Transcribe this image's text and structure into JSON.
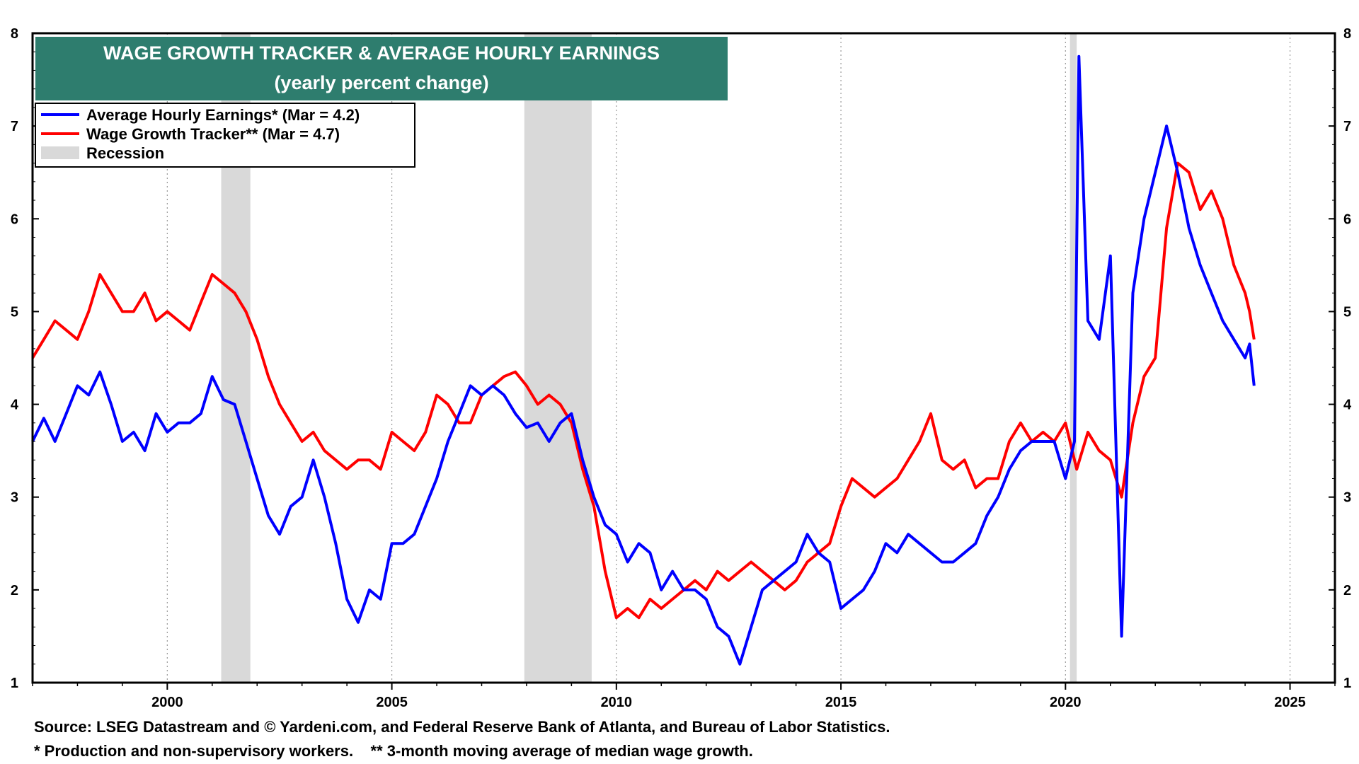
{
  "chart_data": {
    "type": "line",
    "title": "WAGE GROWTH TRACKER & AVERAGE HOURLY EARNINGS",
    "subtitle": "(yearly percent change)",
    "xlabel": "",
    "ylabel": "",
    "xlim": [
      1997.0,
      2026.0
    ],
    "ylim": [
      1,
      8
    ],
    "x_ticks": [
      2000,
      2005,
      2010,
      2015,
      2020,
      2025
    ],
    "y_ticks": [
      1,
      2,
      3,
      4,
      5,
      6,
      7,
      8
    ],
    "grid": "vertical dotted",
    "legend_position": "top-left",
    "colors": {
      "title_bg": "#2e7d6e",
      "ahe": "#0000ff",
      "wgt": "#ff0000",
      "recession": "#d9d9d9"
    },
    "recessions": [
      [
        2001.2,
        2001.85
      ],
      [
        2007.95,
        2009.45
      ],
      [
        2020.1,
        2020.25
      ]
    ],
    "series": [
      {
        "name": "Average Hourly Earnings* (Mar = 4.2)",
        "color": "#0000ff",
        "points": [
          [
            1997.0,
            3.6
          ],
          [
            1997.25,
            3.85
          ],
          [
            1997.5,
            3.6
          ],
          [
            1997.75,
            3.9
          ],
          [
            1998.0,
            4.2
          ],
          [
            1998.25,
            4.1
          ],
          [
            1998.5,
            4.35
          ],
          [
            1998.75,
            4.0
          ],
          [
            1999.0,
            3.6
          ],
          [
            1999.25,
            3.7
          ],
          [
            1999.5,
            3.5
          ],
          [
            1999.75,
            3.9
          ],
          [
            2000.0,
            3.7
          ],
          [
            2000.25,
            3.8
          ],
          [
            2000.5,
            3.8
          ],
          [
            2000.75,
            3.9
          ],
          [
            2001.0,
            4.3
          ],
          [
            2001.25,
            4.05
          ],
          [
            2001.5,
            4.0
          ],
          [
            2001.75,
            3.6
          ],
          [
            2002.0,
            3.2
          ],
          [
            2002.25,
            2.8
          ],
          [
            2002.5,
            2.6
          ],
          [
            2002.75,
            2.9
          ],
          [
            2003.0,
            3.0
          ],
          [
            2003.25,
            3.4
          ],
          [
            2003.5,
            3.0
          ],
          [
            2003.75,
            2.5
          ],
          [
            2004.0,
            1.9
          ],
          [
            2004.25,
            1.65
          ],
          [
            2004.5,
            2.0
          ],
          [
            2004.75,
            1.9
          ],
          [
            2005.0,
            2.5
          ],
          [
            2005.25,
            2.5
          ],
          [
            2005.5,
            2.6
          ],
          [
            2005.75,
            2.9
          ],
          [
            2006.0,
            3.2
          ],
          [
            2006.25,
            3.6
          ],
          [
            2006.5,
            3.9
          ],
          [
            2006.75,
            4.2
          ],
          [
            2007.0,
            4.1
          ],
          [
            2007.25,
            4.2
          ],
          [
            2007.5,
            4.1
          ],
          [
            2007.75,
            3.9
          ],
          [
            2008.0,
            3.75
          ],
          [
            2008.25,
            3.8
          ],
          [
            2008.5,
            3.6
          ],
          [
            2008.75,
            3.8
          ],
          [
            2009.0,
            3.9
          ],
          [
            2009.25,
            3.4
          ],
          [
            2009.5,
            3.0
          ],
          [
            2009.75,
            2.7
          ],
          [
            2010.0,
            2.6
          ],
          [
            2010.25,
            2.3
          ],
          [
            2010.5,
            2.5
          ],
          [
            2010.75,
            2.4
          ],
          [
            2011.0,
            2.0
          ],
          [
            2011.25,
            2.2
          ],
          [
            2011.5,
            2.0
          ],
          [
            2011.75,
            2.0
          ],
          [
            2012.0,
            1.9
          ],
          [
            2012.25,
            1.6
          ],
          [
            2012.5,
            1.5
          ],
          [
            2012.75,
            1.2
          ],
          [
            2013.0,
            1.6
          ],
          [
            2013.25,
            2.0
          ],
          [
            2013.5,
            2.1
          ],
          [
            2013.75,
            2.2
          ],
          [
            2014.0,
            2.3
          ],
          [
            2014.25,
            2.6
          ],
          [
            2014.5,
            2.4
          ],
          [
            2014.75,
            2.3
          ],
          [
            2015.0,
            1.8
          ],
          [
            2015.25,
            1.9
          ],
          [
            2015.5,
            2.0
          ],
          [
            2015.75,
            2.2
          ],
          [
            2016.0,
            2.5
          ],
          [
            2016.25,
            2.4
          ],
          [
            2016.5,
            2.6
          ],
          [
            2016.75,
            2.5
          ],
          [
            2017.0,
            2.4
          ],
          [
            2017.25,
            2.3
          ],
          [
            2017.5,
            2.3
          ],
          [
            2017.75,
            2.4
          ],
          [
            2018.0,
            2.5
          ],
          [
            2018.25,
            2.8
          ],
          [
            2018.5,
            3.0
          ],
          [
            2018.75,
            3.3
          ],
          [
            2019.0,
            3.5
          ],
          [
            2019.25,
            3.6
          ],
          [
            2019.5,
            3.6
          ],
          [
            2019.75,
            3.6
          ],
          [
            2020.0,
            3.2
          ],
          [
            2020.2,
            3.6
          ],
          [
            2020.3,
            7.75
          ],
          [
            2020.5,
            4.9
          ],
          [
            2020.75,
            4.7
          ],
          [
            2021.0,
            5.6
          ],
          [
            2021.25,
            1.5
          ],
          [
            2021.5,
            5.2
          ],
          [
            2021.75,
            6.0
          ],
          [
            2022.0,
            6.5
          ],
          [
            2022.25,
            7.0
          ],
          [
            2022.5,
            6.5
          ],
          [
            2022.75,
            5.9
          ],
          [
            2023.0,
            5.5
          ],
          [
            2023.25,
            5.2
          ],
          [
            2023.5,
            4.9
          ],
          [
            2023.75,
            4.7
          ],
          [
            2024.0,
            4.5
          ],
          [
            2024.1,
            4.65
          ],
          [
            2024.2,
            4.2
          ]
        ]
      },
      {
        "name": "Wage Growth Tracker** (Mar = 4.7)",
        "color": "#ff0000",
        "points": [
          [
            1997.0,
            4.5
          ],
          [
            1997.25,
            4.7
          ],
          [
            1997.5,
            4.9
          ],
          [
            1997.75,
            4.8
          ],
          [
            1998.0,
            4.7
          ],
          [
            1998.25,
            5.0
          ],
          [
            1998.5,
            5.4
          ],
          [
            1998.75,
            5.2
          ],
          [
            1999.0,
            5.0
          ],
          [
            1999.25,
            5.0
          ],
          [
            1999.5,
            5.2
          ],
          [
            1999.75,
            4.9
          ],
          [
            2000.0,
            5.0
          ],
          [
            2000.25,
            4.9
          ],
          [
            2000.5,
            4.8
          ],
          [
            2000.75,
            5.1
          ],
          [
            2001.0,
            5.4
          ],
          [
            2001.25,
            5.3
          ],
          [
            2001.5,
            5.2
          ],
          [
            2001.75,
            5.0
          ],
          [
            2002.0,
            4.7
          ],
          [
            2002.25,
            4.3
          ],
          [
            2002.5,
            4.0
          ],
          [
            2002.75,
            3.8
          ],
          [
            2003.0,
            3.6
          ],
          [
            2003.25,
            3.7
          ],
          [
            2003.5,
            3.5
          ],
          [
            2003.75,
            3.4
          ],
          [
            2004.0,
            3.3
          ],
          [
            2004.25,
            3.4
          ],
          [
            2004.5,
            3.4
          ],
          [
            2004.75,
            3.3
          ],
          [
            2005.0,
            3.7
          ],
          [
            2005.25,
            3.6
          ],
          [
            2005.5,
            3.5
          ],
          [
            2005.75,
            3.7
          ],
          [
            2006.0,
            4.1
          ],
          [
            2006.25,
            4.0
          ],
          [
            2006.5,
            3.8
          ],
          [
            2006.75,
            3.8
          ],
          [
            2007.0,
            4.1
          ],
          [
            2007.25,
            4.2
          ],
          [
            2007.5,
            4.3
          ],
          [
            2007.75,
            4.35
          ],
          [
            2008.0,
            4.2
          ],
          [
            2008.25,
            4.0
          ],
          [
            2008.5,
            4.1
          ],
          [
            2008.75,
            4.0
          ],
          [
            2009.0,
            3.8
          ],
          [
            2009.25,
            3.3
          ],
          [
            2009.5,
            2.9
          ],
          [
            2009.75,
            2.2
          ],
          [
            2010.0,
            1.7
          ],
          [
            2010.25,
            1.8
          ],
          [
            2010.5,
            1.7
          ],
          [
            2010.75,
            1.9
          ],
          [
            2011.0,
            1.8
          ],
          [
            2011.25,
            1.9
          ],
          [
            2011.5,
            2.0
          ],
          [
            2011.75,
            2.1
          ],
          [
            2012.0,
            2.0
          ],
          [
            2012.25,
            2.2
          ],
          [
            2012.5,
            2.1
          ],
          [
            2012.75,
            2.2
          ],
          [
            2013.0,
            2.3
          ],
          [
            2013.25,
            2.2
          ],
          [
            2013.5,
            2.1
          ],
          [
            2013.75,
            2.0
          ],
          [
            2014.0,
            2.1
          ],
          [
            2014.25,
            2.3
          ],
          [
            2014.5,
            2.4
          ],
          [
            2014.75,
            2.5
          ],
          [
            2015.0,
            2.9
          ],
          [
            2015.25,
            3.2
          ],
          [
            2015.5,
            3.1
          ],
          [
            2015.75,
            3.0
          ],
          [
            2016.0,
            3.1
          ],
          [
            2016.25,
            3.2
          ],
          [
            2016.5,
            3.4
          ],
          [
            2016.75,
            3.6
          ],
          [
            2017.0,
            3.9
          ],
          [
            2017.25,
            3.4
          ],
          [
            2017.5,
            3.3
          ],
          [
            2017.75,
            3.4
          ],
          [
            2018.0,
            3.1
          ],
          [
            2018.25,
            3.2
          ],
          [
            2018.5,
            3.2
          ],
          [
            2018.75,
            3.6
          ],
          [
            2019.0,
            3.8
          ],
          [
            2019.25,
            3.6
          ],
          [
            2019.5,
            3.7
          ],
          [
            2019.75,
            3.6
          ],
          [
            2020.0,
            3.8
          ],
          [
            2020.25,
            3.3
          ],
          [
            2020.5,
            3.7
          ],
          [
            2020.75,
            3.5
          ],
          [
            2021.0,
            3.4
          ],
          [
            2021.25,
            3.0
          ],
          [
            2021.5,
            3.8
          ],
          [
            2021.75,
            4.3
          ],
          [
            2022.0,
            4.5
          ],
          [
            2022.25,
            5.9
          ],
          [
            2022.5,
            6.6
          ],
          [
            2022.75,
            6.5
          ],
          [
            2023.0,
            6.1
          ],
          [
            2023.25,
            6.3
          ],
          [
            2023.5,
            6.0
          ],
          [
            2023.75,
            5.5
          ],
          [
            2024.0,
            5.2
          ],
          [
            2024.1,
            5.0
          ],
          [
            2024.2,
            4.7
          ]
        ]
      }
    ],
    "legend": {
      "recession_label": "Recession"
    }
  },
  "footer": {
    "source": "Source: LSEG Datastream and © Yardeni.com, and Federal Reserve Bank of Atlanta, and Bureau of Labor Statistics.",
    "notes": "* Production and non-supervisory workers.    ** 3-month moving average of median wage growth."
  }
}
